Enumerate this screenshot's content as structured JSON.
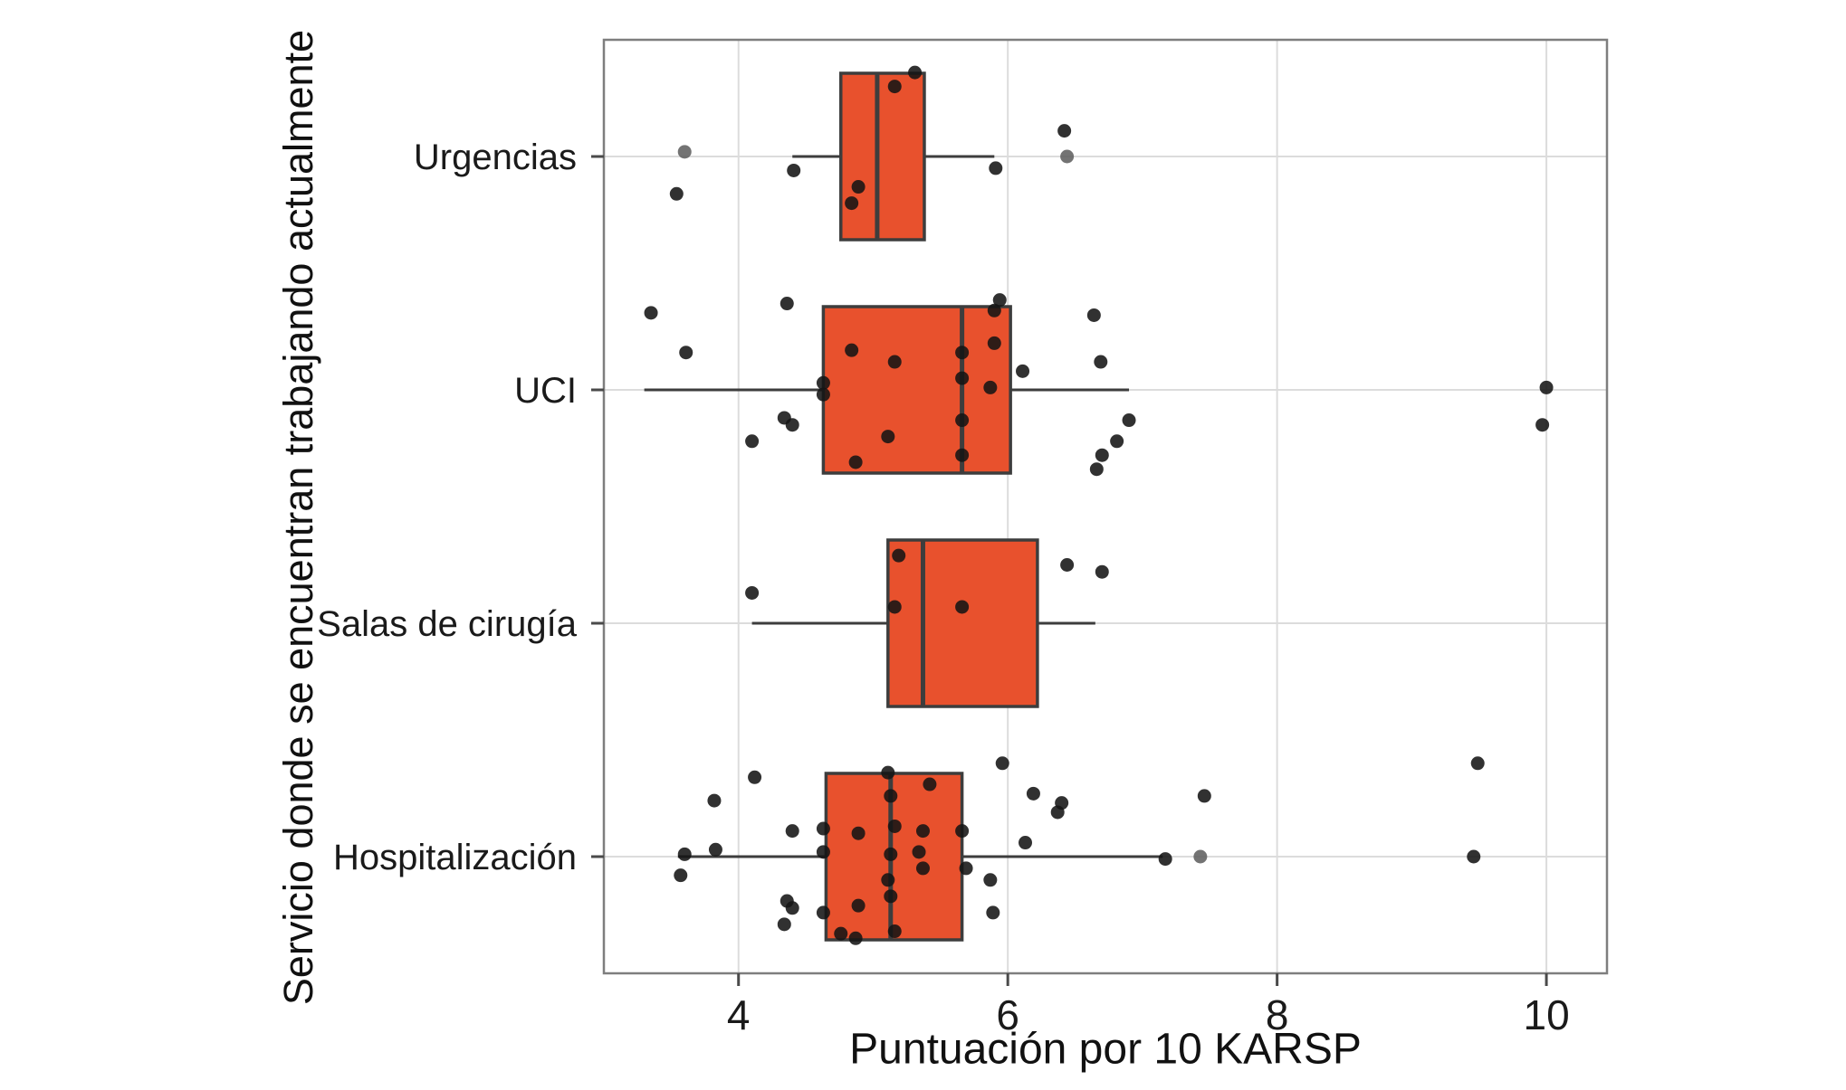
{
  "chart_data": {
    "type": "boxplot",
    "orientation": "horizontal",
    "title": "",
    "xlabel": "Puntuación por 10 KARSP",
    "ylabel": "Servicio donde se encuentran trabajando actualmente",
    "xlim": [
      3.0,
      10.45
    ],
    "xticks": [
      4,
      6,
      8,
      10
    ],
    "grid": true,
    "legend": false,
    "colors": {
      "box_fill": "#E8512D",
      "box_stroke": "#3D3D3D",
      "point": "#141414",
      "point_muted": "#606060",
      "grid_line": "#DCDCDC",
      "panel_border": "#7E7E7E",
      "tick": "#4A4A4A",
      "text": "#1A1A1A"
    },
    "categories": [
      "Urgencias",
      "UCI",
      "Salas de cirugía",
      "Hospitalización"
    ],
    "boxes": [
      {
        "category": "Urgencias",
        "whisker_low": 4.4,
        "q1": 4.76,
        "median": 5.03,
        "q3": 5.38,
        "whisker_high": 5.9
      },
      {
        "category": "UCI",
        "whisker_low": 3.3,
        "q1": 4.63,
        "median": 5.66,
        "q3": 6.02,
        "whisker_high": 6.9
      },
      {
        "category": "Salas de cirugía",
        "whisker_low": 4.1,
        "q1": 5.11,
        "median": 5.37,
        "q3": 6.22,
        "whisker_high": 6.65
      },
      {
        "category": "Hospitalización",
        "whisker_low": 3.55,
        "q1": 4.65,
        "median": 5.13,
        "q3": 5.66,
        "whisker_high": 7.15
      }
    ],
    "points": [
      [
        [
          5.31,
          -0.36
        ],
        [
          5.16,
          -0.3
        ],
        [
          6.42,
          -0.11
        ],
        [
          3.6,
          -0.02,
          "g"
        ],
        [
          6.44,
          0,
          "g"
        ],
        [
          4.41,
          0.06
        ],
        [
          5.91,
          0.05
        ],
        [
          4.89,
          0.13
        ],
        [
          3.54,
          0.16
        ],
        [
          4.84,
          0.2
        ]
      ],
      [
        [
          4.36,
          -0.37
        ],
        [
          5.94,
          -0.385
        ],
        [
          5.9,
          -0.34
        ],
        [
          3.35,
          -0.33
        ],
        [
          6.64,
          -0.32
        ],
        [
          5.9,
          -0.2
        ],
        [
          4.84,
          -0.17
        ],
        [
          3.61,
          -0.16
        ],
        [
          5.66,
          -0.16
        ],
        [
          5.16,
          -0.12
        ],
        [
          6.69,
          -0.12
        ],
        [
          6.11,
          -0.08
        ],
        [
          5.66,
          -0.05
        ],
        [
          4.63,
          -0.03
        ],
        [
          5.87,
          -0.01
        ],
        [
          10.0,
          -0.01
        ],
        [
          4.63,
          0.02
        ],
        [
          4.34,
          0.12
        ],
        [
          5.66,
          0.13
        ],
        [
          6.9,
          0.13
        ],
        [
          4.4,
          0.15
        ],
        [
          9.97,
          0.15
        ],
        [
          5.11,
          0.2
        ],
        [
          4.1,
          0.22
        ],
        [
          6.81,
          0.22
        ],
        [
          5.66,
          0.28
        ],
        [
          6.7,
          0.28
        ],
        [
          4.87,
          0.31
        ],
        [
          6.66,
          0.34
        ]
      ],
      [
        [
          5.19,
          -0.29
        ],
        [
          6.44,
          -0.25
        ],
        [
          6.7,
          -0.22
        ],
        [
          4.1,
          -0.13
        ],
        [
          5.16,
          -0.07
        ],
        [
          5.66,
          -0.07
        ]
      ],
      [
        [
          5.96,
          -0.4
        ],
        [
          9.49,
          -0.4
        ],
        [
          5.11,
          -0.36
        ],
        [
          4.12,
          -0.34
        ],
        [
          5.42,
          -0.31
        ],
        [
          6.19,
          -0.27
        ],
        [
          7.46,
          -0.26
        ],
        [
          5.13,
          -0.26
        ],
        [
          3.82,
          -0.24
        ],
        [
          6.4,
          -0.23
        ],
        [
          6.37,
          -0.19
        ],
        [
          5.16,
          -0.13
        ],
        [
          4.63,
          -0.12
        ],
        [
          4.4,
          -0.11
        ],
        [
          5.37,
          -0.11
        ],
        [
          5.66,
          -0.11
        ],
        [
          4.89,
          -0.1
        ],
        [
          6.13,
          -0.06
        ],
        [
          3.83,
          -0.03
        ],
        [
          4.63,
          -0.02
        ],
        [
          5.34,
          -0.02
        ],
        [
          3.6,
          -0.01
        ],
        [
          5.13,
          -0.01
        ],
        [
          7.17,
          0.01
        ],
        [
          7.43,
          0,
          "g"
        ],
        [
          9.46,
          0
        ],
        [
          5.37,
          0.05
        ],
        [
          5.69,
          0.05
        ],
        [
          3.57,
          0.08
        ],
        [
          5.11,
          0.1
        ],
        [
          5.87,
          0.1
        ],
        [
          5.13,
          0.17
        ],
        [
          4.36,
          0.19
        ],
        [
          4.89,
          0.21
        ],
        [
          4.4,
          0.22
        ],
        [
          4.63,
          0.24
        ],
        [
          5.89,
          0.24
        ],
        [
          4.34,
          0.29
        ],
        [
          4.76,
          0.33
        ],
        [
          5.16,
          0.32
        ],
        [
          4.87,
          0.35
        ]
      ]
    ]
  }
}
